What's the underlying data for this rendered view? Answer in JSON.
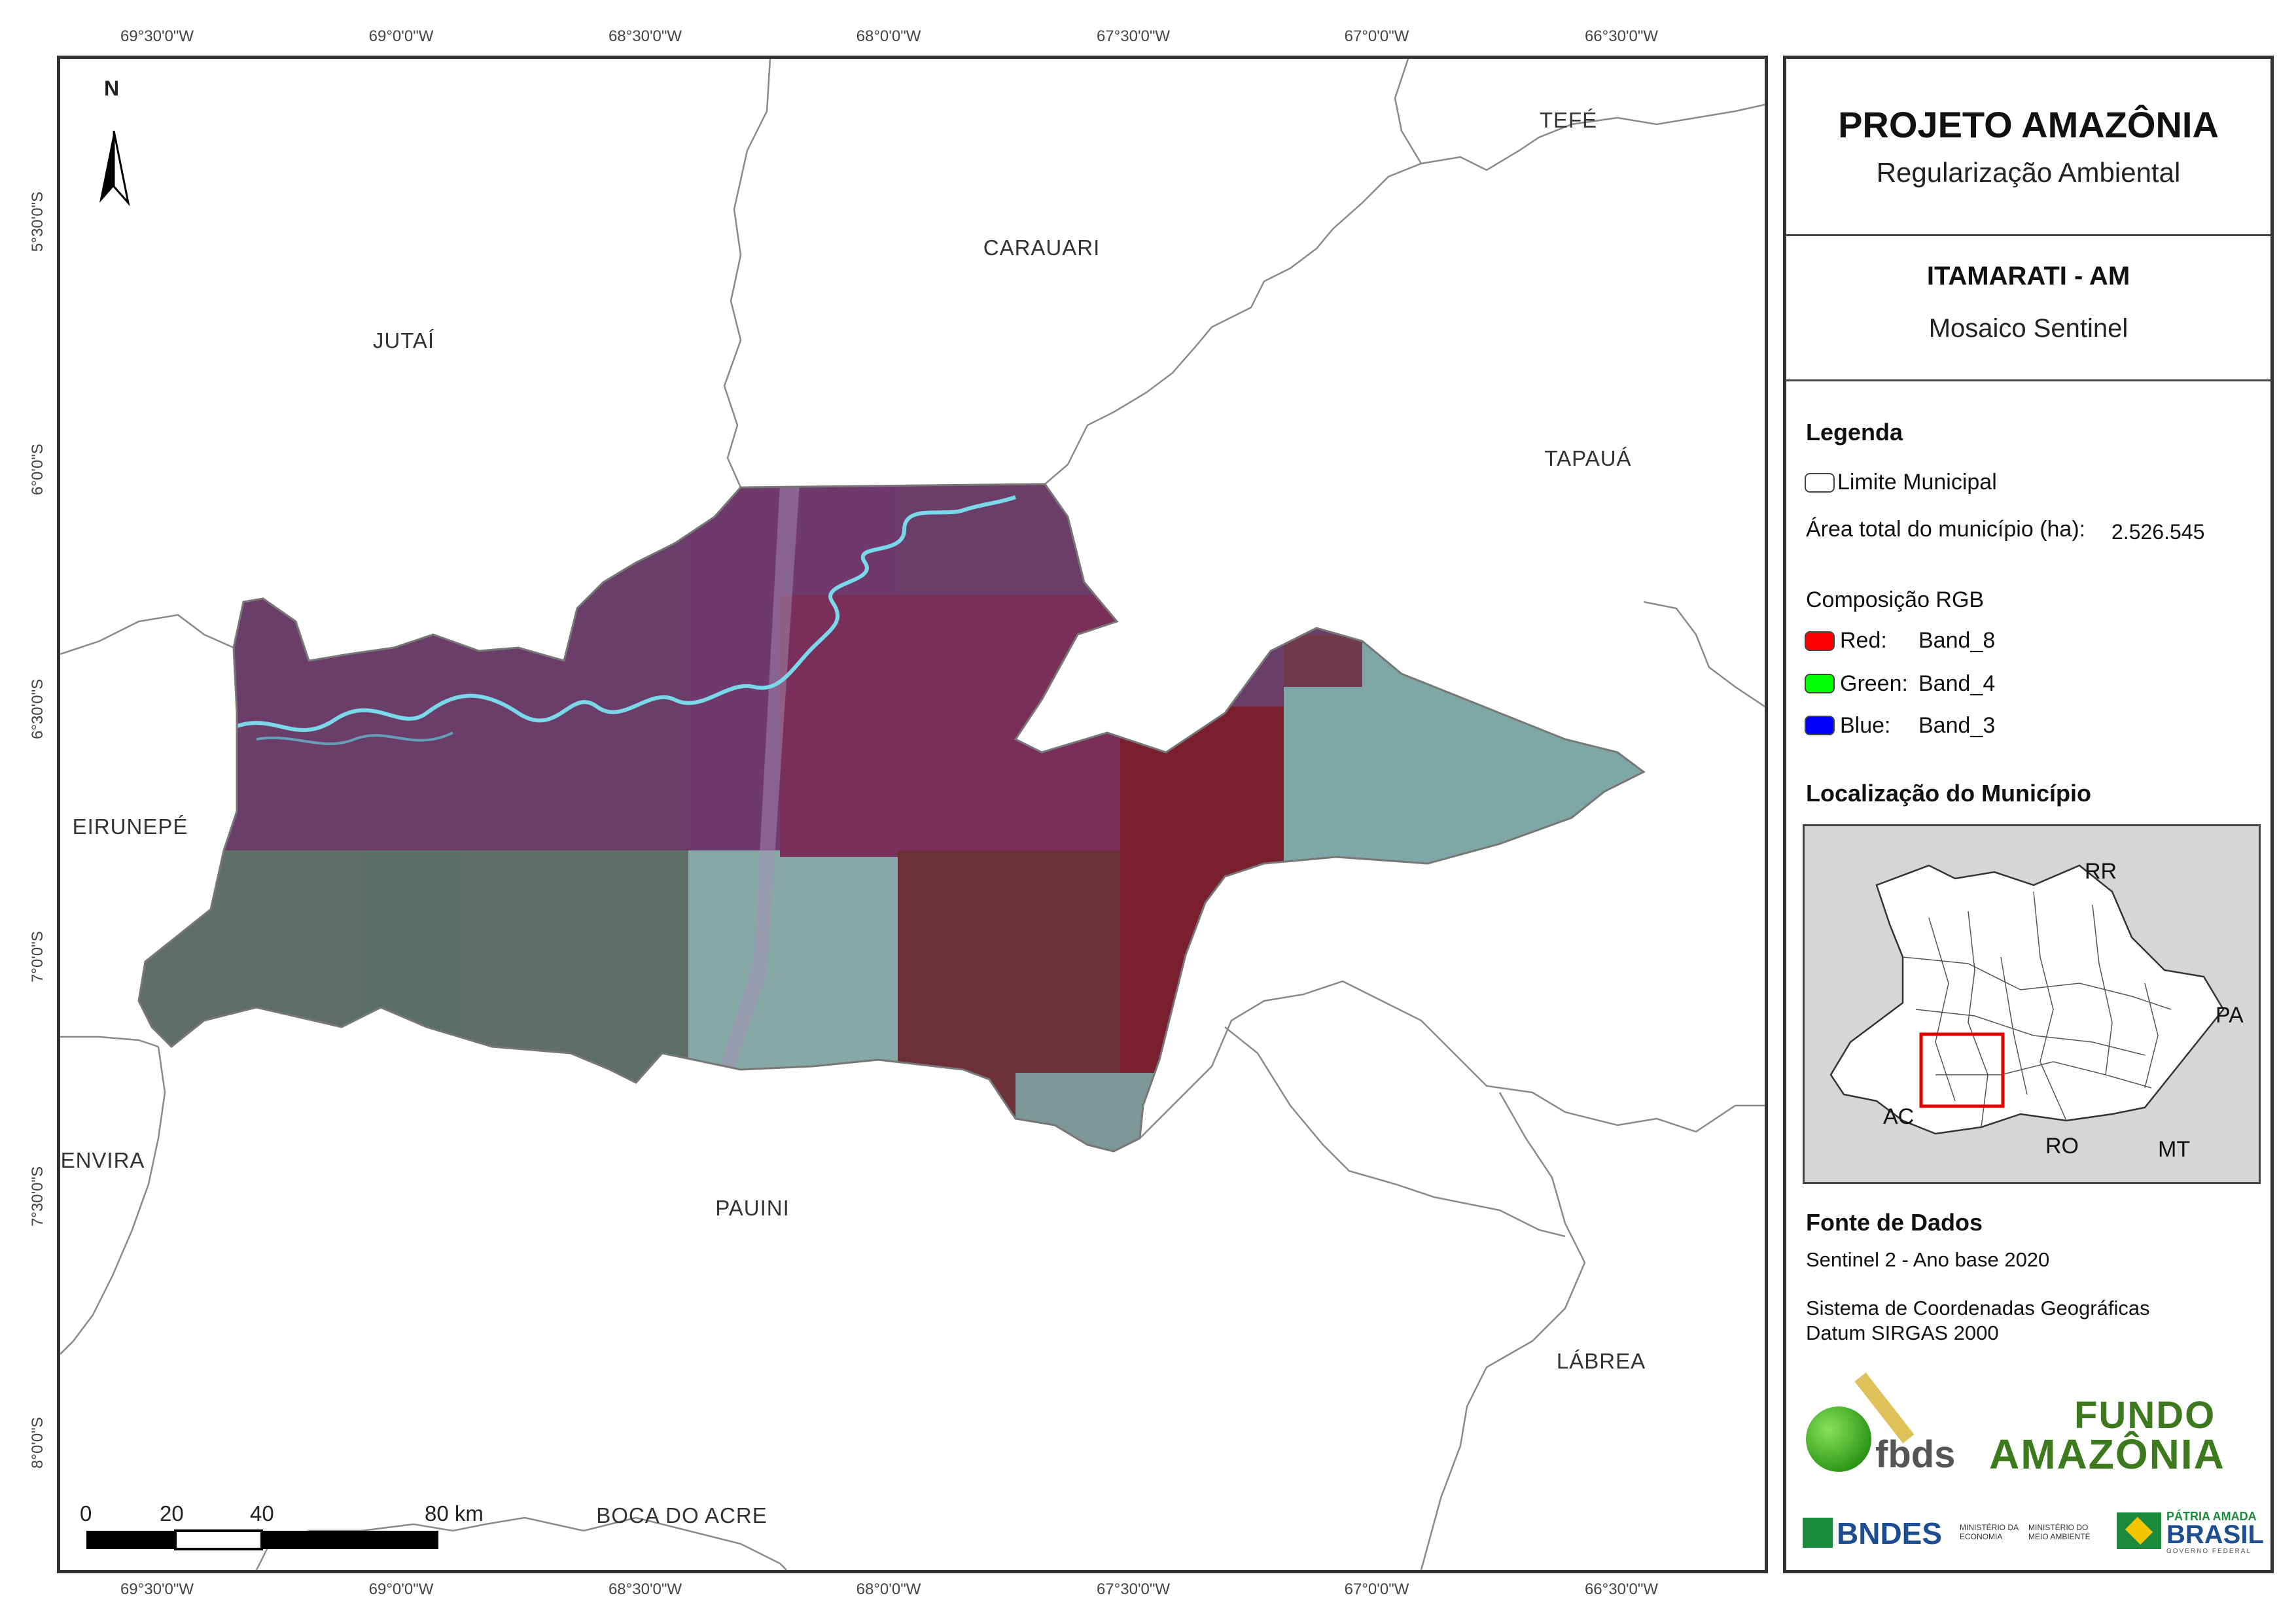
{
  "title": "PROJETO AMAZÔNIA",
  "subtitle": "Regularização Ambiental",
  "municipality_heading": "ITAMARATI - AM",
  "map_type": "Mosaico Sentinel",
  "legend": {
    "heading": "Legenda",
    "boundary_label": "Limite Municipal",
    "area_label": "Área total do município (ha):",
    "area_value": "2.526.545",
    "rgb_heading": "Composição RGB",
    "bands": [
      {
        "label": "Red:",
        "band": "Band_8",
        "color": "#ff0000"
      },
      {
        "label": "Green:",
        "band": "Band_4",
        "color": "#00ff00"
      },
      {
        "label": "Blue:",
        "band": "Band_3",
        "color": "#0000ff"
      }
    ]
  },
  "location": {
    "heading": "Localização do Município",
    "states": [
      "RR",
      "PA",
      "AC",
      "RO",
      "MT"
    ]
  },
  "sources": {
    "heading": "Fonte de Dados",
    "line1": "Sentinel 2 - Ano base 2020",
    "line2": "Sistema de Coordenadas Geográficas",
    "line3": "Datum SIRGAS 2000"
  },
  "longitudes": [
    "69°30'0\"W",
    "69°0'0\"W",
    "68°30'0\"W",
    "68°0'0\"W",
    "67°30'0\"W",
    "67°0'0\"W",
    "66°30'0\"W"
  ],
  "latitudes": [
    "5°30'0\"S",
    "6°0'0\"S",
    "6°30'0\"S",
    "7°0'0\"S",
    "7°30'0\"S",
    "8°0'0\"S"
  ],
  "neighbors": {
    "tefe": "TEFÉ",
    "carauari": "CARAUARI",
    "jutai": "JUTAÍ",
    "tapaua": "TAPAUÁ",
    "eirunepe": "EIRUNEPÉ",
    "envira": "ENVIRA",
    "pauini": "PAUINI",
    "labrea": "LÁBREA",
    "boca_do_acre": "BOCA DO ACRE"
  },
  "north_label": "N",
  "scale": {
    "ticks": [
      "0",
      "20",
      "40",
      "80 km"
    ]
  },
  "logos": {
    "fbds": "fbds",
    "fundo_line1": "FUNDO",
    "fundo_line2": "AMAZÔNIA",
    "bndes": "BNDES",
    "min_economia": "MINISTÉRIO DA ECONOMIA",
    "min_meio": "MINISTÉRIO DO MEIO AMBIENTE",
    "patria": "PÁTRIA AMADA",
    "brasil": "BRASIL",
    "governo": "GOVERNO FEDERAL"
  },
  "colors": {
    "mosaic_purple": "#6b3a6c",
    "mosaic_green": "#5d7268",
    "mosaic_red": "#7a1f2e",
    "mosaic_cyan": "#7fa7a7",
    "river": "#78d8e8",
    "highlight_box": "#e00000"
  }
}
